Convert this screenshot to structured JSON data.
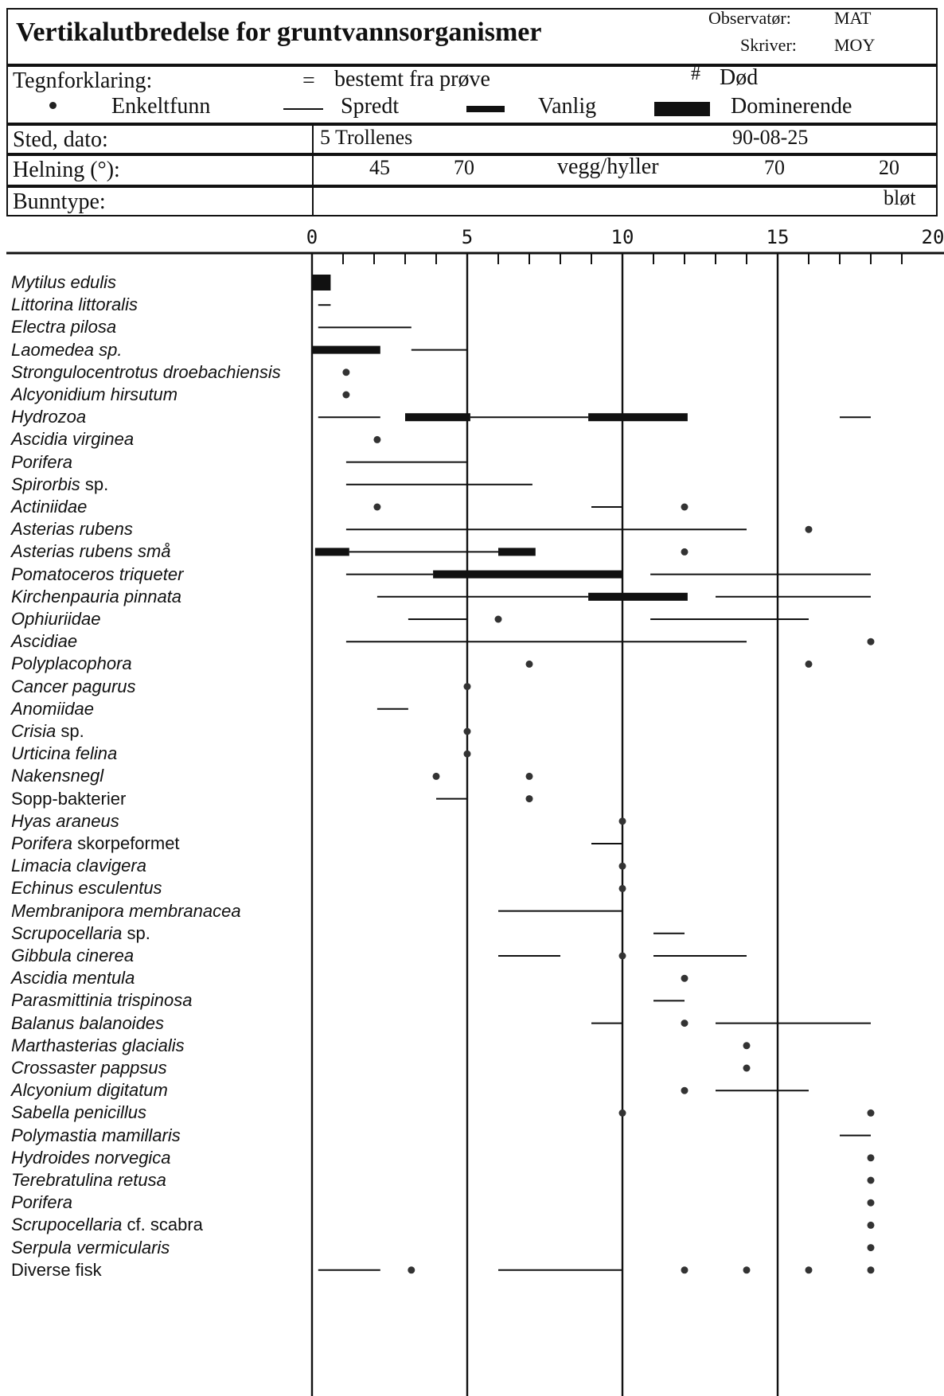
{
  "header": {
    "title": "Vertikalutbredelse for gruntvannsorganismer",
    "observer_label": "Observatør:",
    "observer": "MAT",
    "writer_label": "Skriver:",
    "writer": "MOY"
  },
  "legend": {
    "label": "Tegnforklaring:",
    "sample_symbol": "=",
    "sample_text": "bestemt fra prøve",
    "dead_symbol": "#",
    "dead_text": "Død",
    "single": "Enkeltfunn",
    "scattered": "Spredt",
    "common": "Vanlig",
    "dominant": "Dominerende"
  },
  "site": {
    "label": "Sted, dato:",
    "value": "5 Trollenes",
    "date": "90-08-25"
  },
  "slope": {
    "label": "Helning (°):",
    "v1": "45",
    "v2": "70",
    "v3": "vegg/hyller",
    "v4": "70",
    "v5": "20"
  },
  "bottom": {
    "label": "Bunntype:",
    "value": "bløt"
  },
  "chart_data": {
    "type": "range-chart",
    "x_ticks": [
      "0",
      "5",
      "10",
      "15",
      "20"
    ],
    "xlim": [
      0,
      20
    ],
    "species": [
      {
        "name": "Mytilus edulis",
        "italic": true,
        "marks": [
          {
            "kind": "dominant",
            "from": 0,
            "to": 0.6
          }
        ]
      },
      {
        "name": "Littorina littoralis",
        "italic": true,
        "marks": [
          {
            "kind": "line",
            "from": 0.2,
            "to": 0.6
          }
        ]
      },
      {
        "name": "Electra pilosa",
        "italic": true,
        "marks": [
          {
            "kind": "line",
            "from": 0.2,
            "to": 3.2
          }
        ]
      },
      {
        "name": "Laomedea sp.",
        "italic": true,
        "marks": [
          {
            "kind": "common",
            "from": 0,
            "to": 2.2
          },
          {
            "kind": "line",
            "from": 3.2,
            "to": 5
          }
        ]
      },
      {
        "name": "Strongulocentrotus droebachiensis",
        "italic": true,
        "marks": [
          {
            "kind": "dot",
            "at": 1.1
          }
        ]
      },
      {
        "name": "Alcyonidium hirsutum",
        "italic": true,
        "marks": [
          {
            "kind": "dot",
            "at": 1.1
          }
        ]
      },
      {
        "name": "Hydrozoa",
        "italic": true,
        "marks": [
          {
            "kind": "line",
            "from": 0.2,
            "to": 2.2
          },
          {
            "kind": "common",
            "from": 3,
            "to": 5.1
          },
          {
            "kind": "line",
            "from": 5.1,
            "to": 8.9
          },
          {
            "kind": "common",
            "from": 8.9,
            "to": 12.1
          },
          {
            "kind": "line",
            "from": 17,
            "to": 18
          }
        ]
      },
      {
        "name": "Ascidia virginea",
        "italic": true,
        "marks": [
          {
            "kind": "dot",
            "at": 2.1
          }
        ]
      },
      {
        "name": "Porifera",
        "italic": true,
        "marks": [
          {
            "kind": "line",
            "from": 1.1,
            "to": 5
          }
        ]
      },
      {
        "name": "Spirorbis",
        "italic": true,
        "suffix": " sp.",
        "marks": [
          {
            "kind": "line",
            "from": 1.1,
            "to": 7.1
          }
        ]
      },
      {
        "name": "Actiniidae",
        "italic": true,
        "marks": [
          {
            "kind": "dot",
            "at": 2.1
          },
          {
            "kind": "line",
            "from": 9,
            "to": 10
          },
          {
            "kind": "dot",
            "at": 12
          }
        ]
      },
      {
        "name": "Asterias rubens",
        "italic": true,
        "marks": [
          {
            "kind": "line",
            "from": 1.1,
            "to": 14
          },
          {
            "kind": "dot",
            "at": 16
          }
        ]
      },
      {
        "name": "Asterias rubens små",
        "italic": true,
        "marks": [
          {
            "kind": "common",
            "from": 0.1,
            "to": 1.2
          },
          {
            "kind": "line",
            "from": 1.2,
            "to": 6
          },
          {
            "kind": "common",
            "from": 6,
            "to": 7.2
          },
          {
            "kind": "dot",
            "at": 12
          }
        ]
      },
      {
        "name": "Pomatoceros triqueter",
        "italic": true,
        "marks": [
          {
            "kind": "line",
            "from": 1.1,
            "to": 3.9
          },
          {
            "kind": "common",
            "from": 3.9,
            "to": 10
          },
          {
            "kind": "line",
            "from": 10.9,
            "to": 18
          }
        ]
      },
      {
        "name": "Kirchenpauria pinnata",
        "italic": true,
        "marks": [
          {
            "kind": "line",
            "from": 2.1,
            "to": 8.9
          },
          {
            "kind": "common",
            "from": 8.9,
            "to": 12.1
          },
          {
            "kind": "line",
            "from": 13,
            "to": 18
          }
        ]
      },
      {
        "name": "Ophiuriidae",
        "italic": true,
        "marks": [
          {
            "kind": "line",
            "from": 3.1,
            "to": 5
          },
          {
            "kind": "dot",
            "at": 6
          },
          {
            "kind": "line",
            "from": 10.9,
            "to": 16
          }
        ]
      },
      {
        "name": "Ascidiae",
        "italic": true,
        "marks": [
          {
            "kind": "line",
            "from": 1.1,
            "to": 14
          },
          {
            "kind": "dot",
            "at": 18
          }
        ]
      },
      {
        "name": "Polyplacophora",
        "italic": true,
        "marks": [
          {
            "kind": "dot",
            "at": 7
          },
          {
            "kind": "dot",
            "at": 16
          }
        ]
      },
      {
        "name": "Cancer pagurus",
        "italic": true,
        "marks": [
          {
            "kind": "dot",
            "at": 5
          }
        ]
      },
      {
        "name": "Anomiidae",
        "italic": true,
        "marks": [
          {
            "kind": "line",
            "from": 2.1,
            "to": 3.1
          }
        ]
      },
      {
        "name": "Crisia",
        "italic": true,
        "suffix": " sp.",
        "marks": [
          {
            "kind": "dot",
            "at": 5
          }
        ]
      },
      {
        "name": "Urticina felina",
        "italic": true,
        "marks": [
          {
            "kind": "dot",
            "at": 5
          }
        ]
      },
      {
        "name": "Nakensnegl",
        "italic": true,
        "marks": [
          {
            "kind": "dot",
            "at": 4
          },
          {
            "kind": "dot",
            "at": 7
          }
        ]
      },
      {
        "name": "Sopp-bakterier",
        "italic": false,
        "marks": [
          {
            "kind": "line",
            "from": 4,
            "to": 5
          },
          {
            "kind": "dot",
            "at": 7
          }
        ]
      },
      {
        "name": "Hyas araneus",
        "italic": true,
        "marks": [
          {
            "kind": "dot",
            "at": 10
          }
        ]
      },
      {
        "name": "Porifera",
        "italic": true,
        "suffix": " skorpeformet",
        "marks": [
          {
            "kind": "line",
            "from": 9,
            "to": 10
          }
        ]
      },
      {
        "name": "Limacia clavigera",
        "italic": true,
        "marks": [
          {
            "kind": "dot",
            "at": 10
          }
        ]
      },
      {
        "name": "Echinus esculentus",
        "italic": true,
        "marks": [
          {
            "kind": "dot",
            "at": 10
          }
        ]
      },
      {
        "name": "Membranipora membranacea",
        "italic": true,
        "marks": [
          {
            "kind": "line",
            "from": 6,
            "to": 10
          }
        ]
      },
      {
        "name": "Scrupocellaria",
        "italic": true,
        "suffix": " sp.",
        "marks": [
          {
            "kind": "line",
            "from": 11,
            "to": 12
          }
        ]
      },
      {
        "name": "Gibbula cinerea",
        "italic": true,
        "marks": [
          {
            "kind": "line",
            "from": 6,
            "to": 8
          },
          {
            "kind": "dot",
            "at": 10
          },
          {
            "kind": "line",
            "from": 11,
            "to": 14
          }
        ]
      },
      {
        "name": "Ascidia mentula",
        "italic": true,
        "marks": [
          {
            "kind": "dot",
            "at": 12
          }
        ]
      },
      {
        "name": "Parasmittinia trispinosa",
        "italic": true,
        "marks": [
          {
            "kind": "line",
            "from": 11,
            "to": 12
          }
        ]
      },
      {
        "name": "Balanus balanoides",
        "italic": true,
        "marks": [
          {
            "kind": "line",
            "from": 9,
            "to": 10
          },
          {
            "kind": "dot",
            "at": 12
          },
          {
            "kind": "line",
            "from": 13,
            "to": 18
          }
        ]
      },
      {
        "name": "Marthasterias glacialis",
        "italic": true,
        "marks": [
          {
            "kind": "dot",
            "at": 14
          }
        ]
      },
      {
        "name": "Crossaster pappsus",
        "italic": true,
        "marks": [
          {
            "kind": "dot",
            "at": 14
          }
        ]
      },
      {
        "name": "Alcyonium digitatum",
        "italic": true,
        "marks": [
          {
            "kind": "dot",
            "at": 12
          },
          {
            "kind": "line",
            "from": 13,
            "to": 16
          }
        ]
      },
      {
        "name": "Sabella penicillus",
        "italic": true,
        "marks": [
          {
            "kind": "dot",
            "at": 10
          },
          {
            "kind": "dot",
            "at": 18
          }
        ]
      },
      {
        "name": "Polymastia mamillaris",
        "italic": true,
        "marks": [
          {
            "kind": "line",
            "from": 17,
            "to": 18
          }
        ]
      },
      {
        "name": "Hydroides norvegica",
        "italic": true,
        "marks": [
          {
            "kind": "dot",
            "at": 18
          }
        ]
      },
      {
        "name": "Terebratulina retusa",
        "italic": true,
        "marks": [
          {
            "kind": "dot",
            "at": 18
          }
        ]
      },
      {
        "name": "Porifera",
        "italic": true,
        "marks": [
          {
            "kind": "dot",
            "at": 18
          }
        ]
      },
      {
        "name": "Scrupocellaria",
        "italic": true,
        "suffix": " cf. scabra",
        "marks": [
          {
            "kind": "dot",
            "at": 18
          }
        ]
      },
      {
        "name": "Serpula vermicularis",
        "italic": true,
        "marks": [
          {
            "kind": "dot",
            "at": 18
          }
        ]
      },
      {
        "name": "Diverse fisk",
        "italic": false,
        "marks": [
          {
            "kind": "line",
            "from": 0.2,
            "to": 2.2
          },
          {
            "kind": "dot",
            "at": 3.2
          },
          {
            "kind": "line",
            "from": 6,
            "to": 10
          },
          {
            "kind": "dot",
            "at": 12
          },
          {
            "kind": "dot",
            "at": 14
          },
          {
            "kind": "dot",
            "at": 16
          },
          {
            "kind": "dot",
            "at": 18
          }
        ]
      }
    ]
  }
}
